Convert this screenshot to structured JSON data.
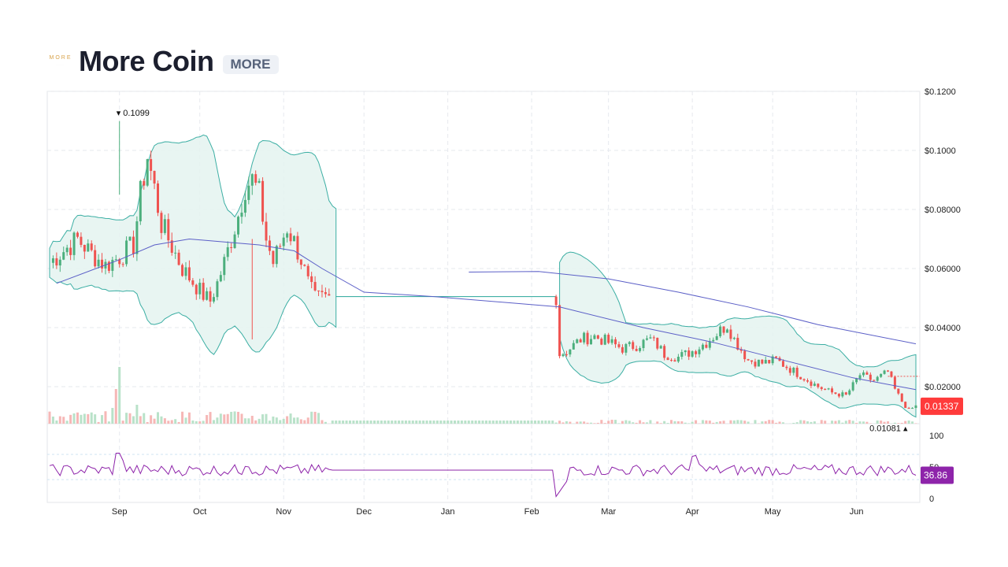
{
  "header": {
    "logo_text": "MORE",
    "title": "More Coin",
    "symbol": "MORE"
  },
  "colors": {
    "up": "#26a69a",
    "up_candle": "#4caf7d",
    "down": "#ef5350",
    "band_stroke": "#26a69a",
    "band_fill": "#e6f4f1",
    "ma_long": "#5b5fc7",
    "rsi": "#8e24aa",
    "price_badge": "#ff3b3b",
    "rsi_badge": "#8e24aa"
  },
  "chart_data": {
    "type": "candlestick",
    "x_labels": [
      "Sep",
      "Oct",
      "Nov",
      "Dec",
      "Jan",
      "Feb",
      "Mar",
      "Apr",
      "May",
      "Jun"
    ],
    "y_ticks": [
      "$0.1200",
      "$0.1000",
      "$0.08000",
      "$0.06000",
      "$0.04000",
      "$0.02000"
    ],
    "ylim": [
      0.0,
      0.12
    ],
    "high_label": "0.1099",
    "low_label": "0.01081",
    "last_price_label": "0.01337",
    "last_price": 0.01337,
    "high": 0.1099,
    "low": 0.01081,
    "price_path": [
      [
        0,
        0.062
      ],
      [
        4,
        0.066
      ],
      [
        8,
        0.07
      ],
      [
        12,
        0.065
      ],
      [
        16,
        0.061
      ],
      [
        20,
        0.064
      ],
      [
        24,
        0.068
      ],
      [
        26,
        0.085
      ],
      [
        28,
        0.098
      ],
      [
        30,
        0.087
      ],
      [
        32,
        0.075
      ],
      [
        34,
        0.07
      ],
      [
        36,
        0.065
      ],
      [
        38,
        0.06
      ],
      [
        40,
        0.057
      ],
      [
        42,
        0.054
      ],
      [
        44,
        0.051
      ],
      [
        46,
        0.049
      ],
      [
        48,
        0.055
      ],
      [
        50,
        0.062
      ],
      [
        52,
        0.07
      ],
      [
        54,
        0.078
      ],
      [
        56,
        0.088
      ],
      [
        58,
        0.09
      ],
      [
        60,
        0.085
      ],
      [
        62,
        0.07
      ],
      [
        64,
        0.062
      ],
      [
        66,
        0.068
      ],
      [
        68,
        0.074
      ],
      [
        70,
        0.069
      ],
      [
        72,
        0.063
      ],
      [
        74,
        0.055
      ],
      [
        76,
        0.05
      ],
      [
        78,
        0.0505
      ],
      [
        80,
        0.0505
      ],
      [
        120,
        0.0505
      ],
      [
        145,
        0.0505
      ],
      [
        146,
        0.031
      ],
      [
        148,
        0.032
      ],
      [
        150,
        0.034
      ],
      [
        152,
        0.036
      ],
      [
        156,
        0.037
      ],
      [
        160,
        0.035
      ],
      [
        164,
        0.033
      ],
      [
        168,
        0.034
      ],
      [
        172,
        0.036
      ],
      [
        174,
        0.034
      ],
      [
        176,
        0.031
      ],
      [
        180,
        0.03
      ],
      [
        184,
        0.032
      ],
      [
        188,
        0.035
      ],
      [
        192,
        0.039
      ],
      [
        194,
        0.041
      ],
      [
        196,
        0.036
      ],
      [
        200,
        0.029
      ],
      [
        204,
        0.028
      ],
      [
        208,
        0.029
      ],
      [
        212,
        0.026
      ],
      [
        216,
        0.023
      ],
      [
        220,
        0.02
      ],
      [
        224,
        0.018
      ],
      [
        228,
        0.017
      ],
      [
        232,
        0.024
      ],
      [
        236,
        0.022
      ],
      [
        240,
        0.025
      ],
      [
        242,
        0.019
      ],
      [
        244,
        0.015
      ],
      [
        246,
        0.012
      ],
      [
        248,
        0.0134
      ]
    ],
    "days_total": 248,
    "month_day_index": [
      20,
      43,
      67,
      90,
      114,
      138,
      160,
      184,
      207,
      231
    ],
    "volume_spikes": [
      [
        18,
        0.25
      ],
      [
        19,
        0.55
      ],
      [
        20,
        0.9
      ],
      [
        25,
        0.3
      ],
      [
        26,
        0.12
      ]
    ],
    "rsi": {
      "ticks": [
        "100",
        "50",
        "0"
      ],
      "last_label": "36.86",
      "last": 36.86,
      "upper": 70,
      "lower": 30
    }
  }
}
